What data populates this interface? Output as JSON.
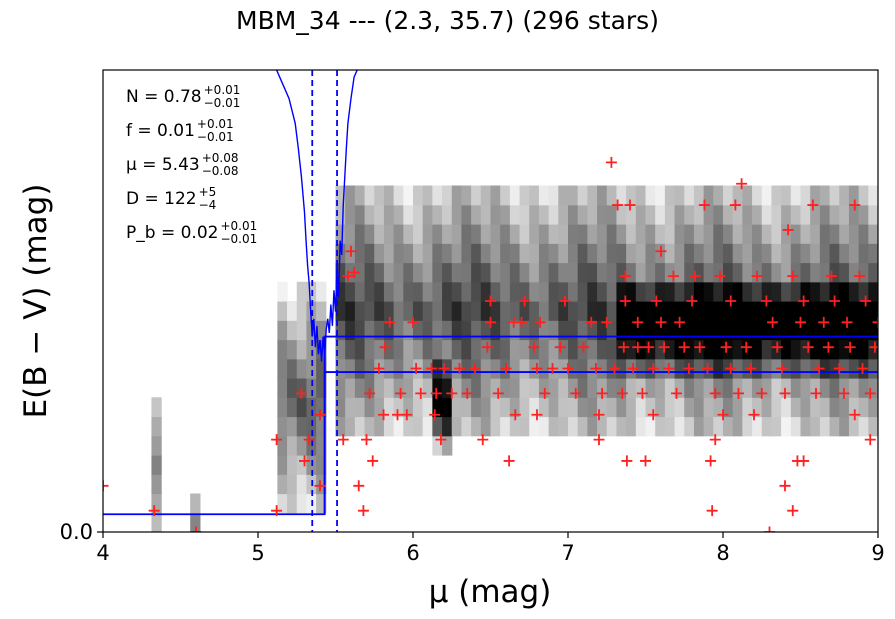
{
  "title": "MBM_34 --- (2.3, 35.7) (296 stars)",
  "chart_data": {
    "type": "heatmap",
    "title": "MBM_34 --- (2.3, 35.7) (296 stars)",
    "xlabel": "μ (mag)",
    "ylabel": "E(B − V) (mag)",
    "xlim": [
      4,
      9
    ],
    "ylim": [
      0.0,
      1.3
    ],
    "x_ticks": [
      "4",
      "5",
      "6",
      "7",
      "8",
      "9"
    ],
    "y_ticks": [
      "0.0"
    ],
    "colormap": "grayscale (white = low, black = high density)",
    "density_ridges": [
      {
        "x0": 4.3,
        "x1": 4.38,
        "y0": 0.0,
        "y1": 0.36
      },
      {
        "x0": 4.55,
        "x1": 4.65,
        "y0": 0.0,
        "y1": 0.1
      },
      {
        "x0": 5.1,
        "x1": 5.45,
        "y0": 0.05,
        "y1": 0.7
      },
      {
        "x0": 5.5,
        "x1": 9.0,
        "y0": 0.25,
        "y1": 1.0
      },
      {
        "x0": 6.1,
        "x1": 6.25,
        "y0": 0.2,
        "y1": 0.5
      },
      {
        "x0": 7.3,
        "x1": 9.0,
        "y0": 0.45,
        "y1": 0.7
      }
    ],
    "series": [
      {
        "kind": "scatter",
        "color": "#ff2020",
        "marker": "plus",
        "points": [
          [
            4.0,
            0.13
          ],
          [
            4.33,
            0.06
          ],
          [
            4.6,
            0.0
          ],
          [
            5.12,
            0.26
          ],
          [
            5.12,
            0.06
          ],
          [
            5.28,
            0.39
          ],
          [
            5.3,
            0.2
          ],
          [
            5.33,
            0.26
          ],
          [
            5.4,
            0.13
          ],
          [
            5.4,
            0.33
          ],
          [
            5.55,
            0.26
          ],
          [
            5.58,
            0.72
          ],
          [
            5.6,
            0.79
          ],
          [
            5.62,
            0.73
          ],
          [
            5.65,
            0.13
          ],
          [
            5.68,
            0.06
          ],
          [
            5.7,
            0.26
          ],
          [
            5.72,
            0.39
          ],
          [
            5.74,
            0.2
          ],
          [
            5.78,
            0.46
          ],
          [
            5.81,
            0.33
          ],
          [
            5.82,
            0.52
          ],
          [
            5.85,
            0.59
          ],
          [
            5.9,
            0.33
          ],
          [
            5.92,
            0.39
          ],
          [
            5.96,
            0.33
          ],
          [
            6.0,
            0.59
          ],
          [
            6.02,
            0.46
          ],
          [
            6.05,
            0.39
          ],
          [
            6.12,
            0.46
          ],
          [
            6.14,
            0.33
          ],
          [
            6.15,
            0.39
          ],
          [
            6.18,
            0.26
          ],
          [
            6.2,
            0.46
          ],
          [
            6.25,
            0.39
          ],
          [
            6.3,
            0.46
          ],
          [
            6.35,
            0.39
          ],
          [
            6.4,
            0.46
          ],
          [
            6.45,
            0.26
          ],
          [
            6.48,
            0.52
          ],
          [
            6.5,
            0.59
          ],
          [
            6.5,
            0.65
          ],
          [
            6.55,
            0.39
          ],
          [
            6.6,
            0.46
          ],
          [
            6.62,
            0.2
          ],
          [
            6.65,
            0.59
          ],
          [
            6.66,
            0.33
          ],
          [
            6.7,
            0.59
          ],
          [
            6.72,
            0.65
          ],
          [
            6.78,
            0.52
          ],
          [
            6.8,
            0.46
          ],
          [
            6.8,
            0.33
          ],
          [
            6.82,
            0.59
          ],
          [
            6.85,
            0.39
          ],
          [
            6.9,
            0.46
          ],
          [
            6.95,
            0.52
          ],
          [
            6.98,
            0.65
          ],
          [
            7.0,
            0.46
          ],
          [
            7.05,
            0.39
          ],
          [
            7.1,
            0.52
          ],
          [
            7.15,
            0.59
          ],
          [
            7.18,
            0.46
          ],
          [
            7.2,
            0.33
          ],
          [
            7.2,
            0.26
          ],
          [
            7.22,
            0.39
          ],
          [
            7.25,
            0.59
          ],
          [
            7.28,
            1.04
          ],
          [
            7.3,
            0.46
          ],
          [
            7.32,
            0.92
          ],
          [
            7.35,
            0.39
          ],
          [
            7.36,
            0.52
          ],
          [
            7.37,
            0.65
          ],
          [
            7.37,
            0.72
          ],
          [
            7.38,
            0.2
          ],
          [
            7.4,
            0.92
          ],
          [
            7.42,
            0.46
          ],
          [
            7.45,
            0.52
          ],
          [
            7.45,
            0.59
          ],
          [
            7.48,
            0.39
          ],
          [
            7.5,
            0.2
          ],
          [
            7.52,
            0.52
          ],
          [
            7.55,
            0.33
          ],
          [
            7.55,
            0.46
          ],
          [
            7.57,
            0.65
          ],
          [
            7.6,
            0.59
          ],
          [
            7.6,
            0.79
          ],
          [
            7.62,
            0.52
          ],
          [
            7.65,
            0.46
          ],
          [
            7.68,
            0.72
          ],
          [
            7.7,
            0.39
          ],
          [
            7.72,
            0.59
          ],
          [
            7.75,
            0.52
          ],
          [
            7.78,
            0.46
          ],
          [
            7.8,
            0.65
          ],
          [
            7.82,
            0.72
          ],
          [
            7.85,
            0.52
          ],
          [
            7.88,
            0.92
          ],
          [
            7.9,
            0.46
          ],
          [
            7.92,
            0.2
          ],
          [
            7.93,
            0.06
          ],
          [
            7.95,
            0.26
          ],
          [
            7.95,
            0.39
          ],
          [
            7.98,
            0.72
          ],
          [
            8.0,
            0.33
          ],
          [
            8.02,
            0.52
          ],
          [
            8.05,
            0.65
          ],
          [
            8.05,
            0.46
          ],
          [
            8.08,
            0.92
          ],
          [
            8.1,
            0.39
          ],
          [
            8.12,
            0.98
          ],
          [
            8.15,
            0.52
          ],
          [
            8.18,
            0.46
          ],
          [
            8.2,
            0.33
          ],
          [
            8.22,
            0.72
          ],
          [
            8.25,
            0.39
          ],
          [
            8.28,
            0.65
          ],
          [
            8.3,
            0.0
          ],
          [
            8.32,
            0.59
          ],
          [
            8.35,
            0.52
          ],
          [
            8.38,
            0.46
          ],
          [
            8.4,
            0.39
          ],
          [
            8.42,
            0.85
          ],
          [
            8.45,
            0.72
          ],
          [
            8.48,
            0.2
          ],
          [
            8.5,
            0.59
          ],
          [
            8.52,
            0.65
          ],
          [
            8.55,
            0.52
          ],
          [
            8.58,
            0.92
          ],
          [
            8.6,
            0.39
          ],
          [
            8.62,
            0.46
          ],
          [
            8.65,
            0.59
          ],
          [
            8.68,
            0.52
          ],
          [
            8.7,
            0.72
          ],
          [
            8.72,
            0.65
          ],
          [
            8.75,
            0.46
          ],
          [
            8.78,
            0.39
          ],
          [
            8.8,
            0.59
          ],
          [
            8.82,
            0.52
          ],
          [
            8.85,
            0.92
          ],
          [
            8.88,
            0.72
          ],
          [
            8.9,
            0.46
          ],
          [
            8.92,
            0.65
          ],
          [
            8.95,
            0.39
          ],
          [
            8.98,
            0.52
          ],
          [
            9.0,
            0.59
          ],
          [
            8.85,
            0.33
          ],
          [
            8.95,
            0.26
          ],
          [
            8.4,
            0.13
          ],
          [
            8.45,
            0.06
          ],
          [
            8.52,
            0.2
          ]
        ]
      },
      {
        "kind": "line",
        "color": "#0000ff",
        "name": "",
        "points": [
          [
            5.12,
            1.3
          ],
          [
            5.15,
            1.27
          ],
          [
            5.2,
            1.22
          ],
          [
            5.24,
            1.15
          ],
          [
            5.26,
            1.08
          ],
          [
            5.28,
            1.0
          ],
          [
            5.3,
            0.9
          ],
          [
            5.31,
            0.82
          ],
          [
            5.32,
            0.75
          ],
          [
            5.33,
            0.7
          ],
          [
            5.34,
            0.62
          ],
          [
            5.35,
            0.55
          ],
          [
            5.36,
            0.6
          ],
          [
            5.37,
            0.52
          ],
          [
            5.38,
            0.58
          ],
          [
            5.39,
            0.5
          ],
          [
            5.4,
            0.54
          ],
          [
            5.41,
            0.48
          ],
          [
            5.42,
            0.55
          ],
          [
            5.43,
            0.5
          ],
          [
            5.44,
            0.57
          ],
          [
            5.45,
            0.6
          ],
          [
            5.46,
            0.56
          ],
          [
            5.47,
            0.64
          ],
          [
            5.48,
            0.58
          ],
          [
            5.49,
            0.68
          ],
          [
            5.5,
            0.62
          ],
          [
            5.51,
            0.75
          ],
          [
            5.52,
            0.66
          ],
          [
            5.53,
            0.82
          ],
          [
            5.54,
            0.78
          ],
          [
            5.55,
            0.92
          ],
          [
            5.56,
            1.0
          ],
          [
            5.57,
            1.08
          ],
          [
            5.58,
            1.15
          ],
          [
            5.6,
            1.22
          ],
          [
            5.62,
            1.28
          ],
          [
            5.64,
            1.3
          ]
        ]
      }
    ],
    "mu_lines": {
      "median": 5.43,
      "lower": 5.35,
      "upper": 5.51
    },
    "reddening_step": {
      "x_step": 5.43,
      "y_before": 0.05,
      "y_after_lower": 0.45,
      "y_after_upper": 0.55
    },
    "annotations": [
      {
        "main": "N = 0.78",
        "sup": "+0.01",
        "sub": "−0.01"
      },
      {
        "main": "f = 0.01",
        "sup": "+0.01",
        "sub": "−0.01"
      },
      {
        "main": "μ = 5.43",
        "sup": "+0.08",
        "sub": "−0.08"
      },
      {
        "main": "D = 122",
        "sup": "+5",
        "sub": "−4"
      },
      {
        "main": "P_b = 0.02",
        "sup": "+0.01",
        "sub": "−0.01"
      }
    ]
  }
}
